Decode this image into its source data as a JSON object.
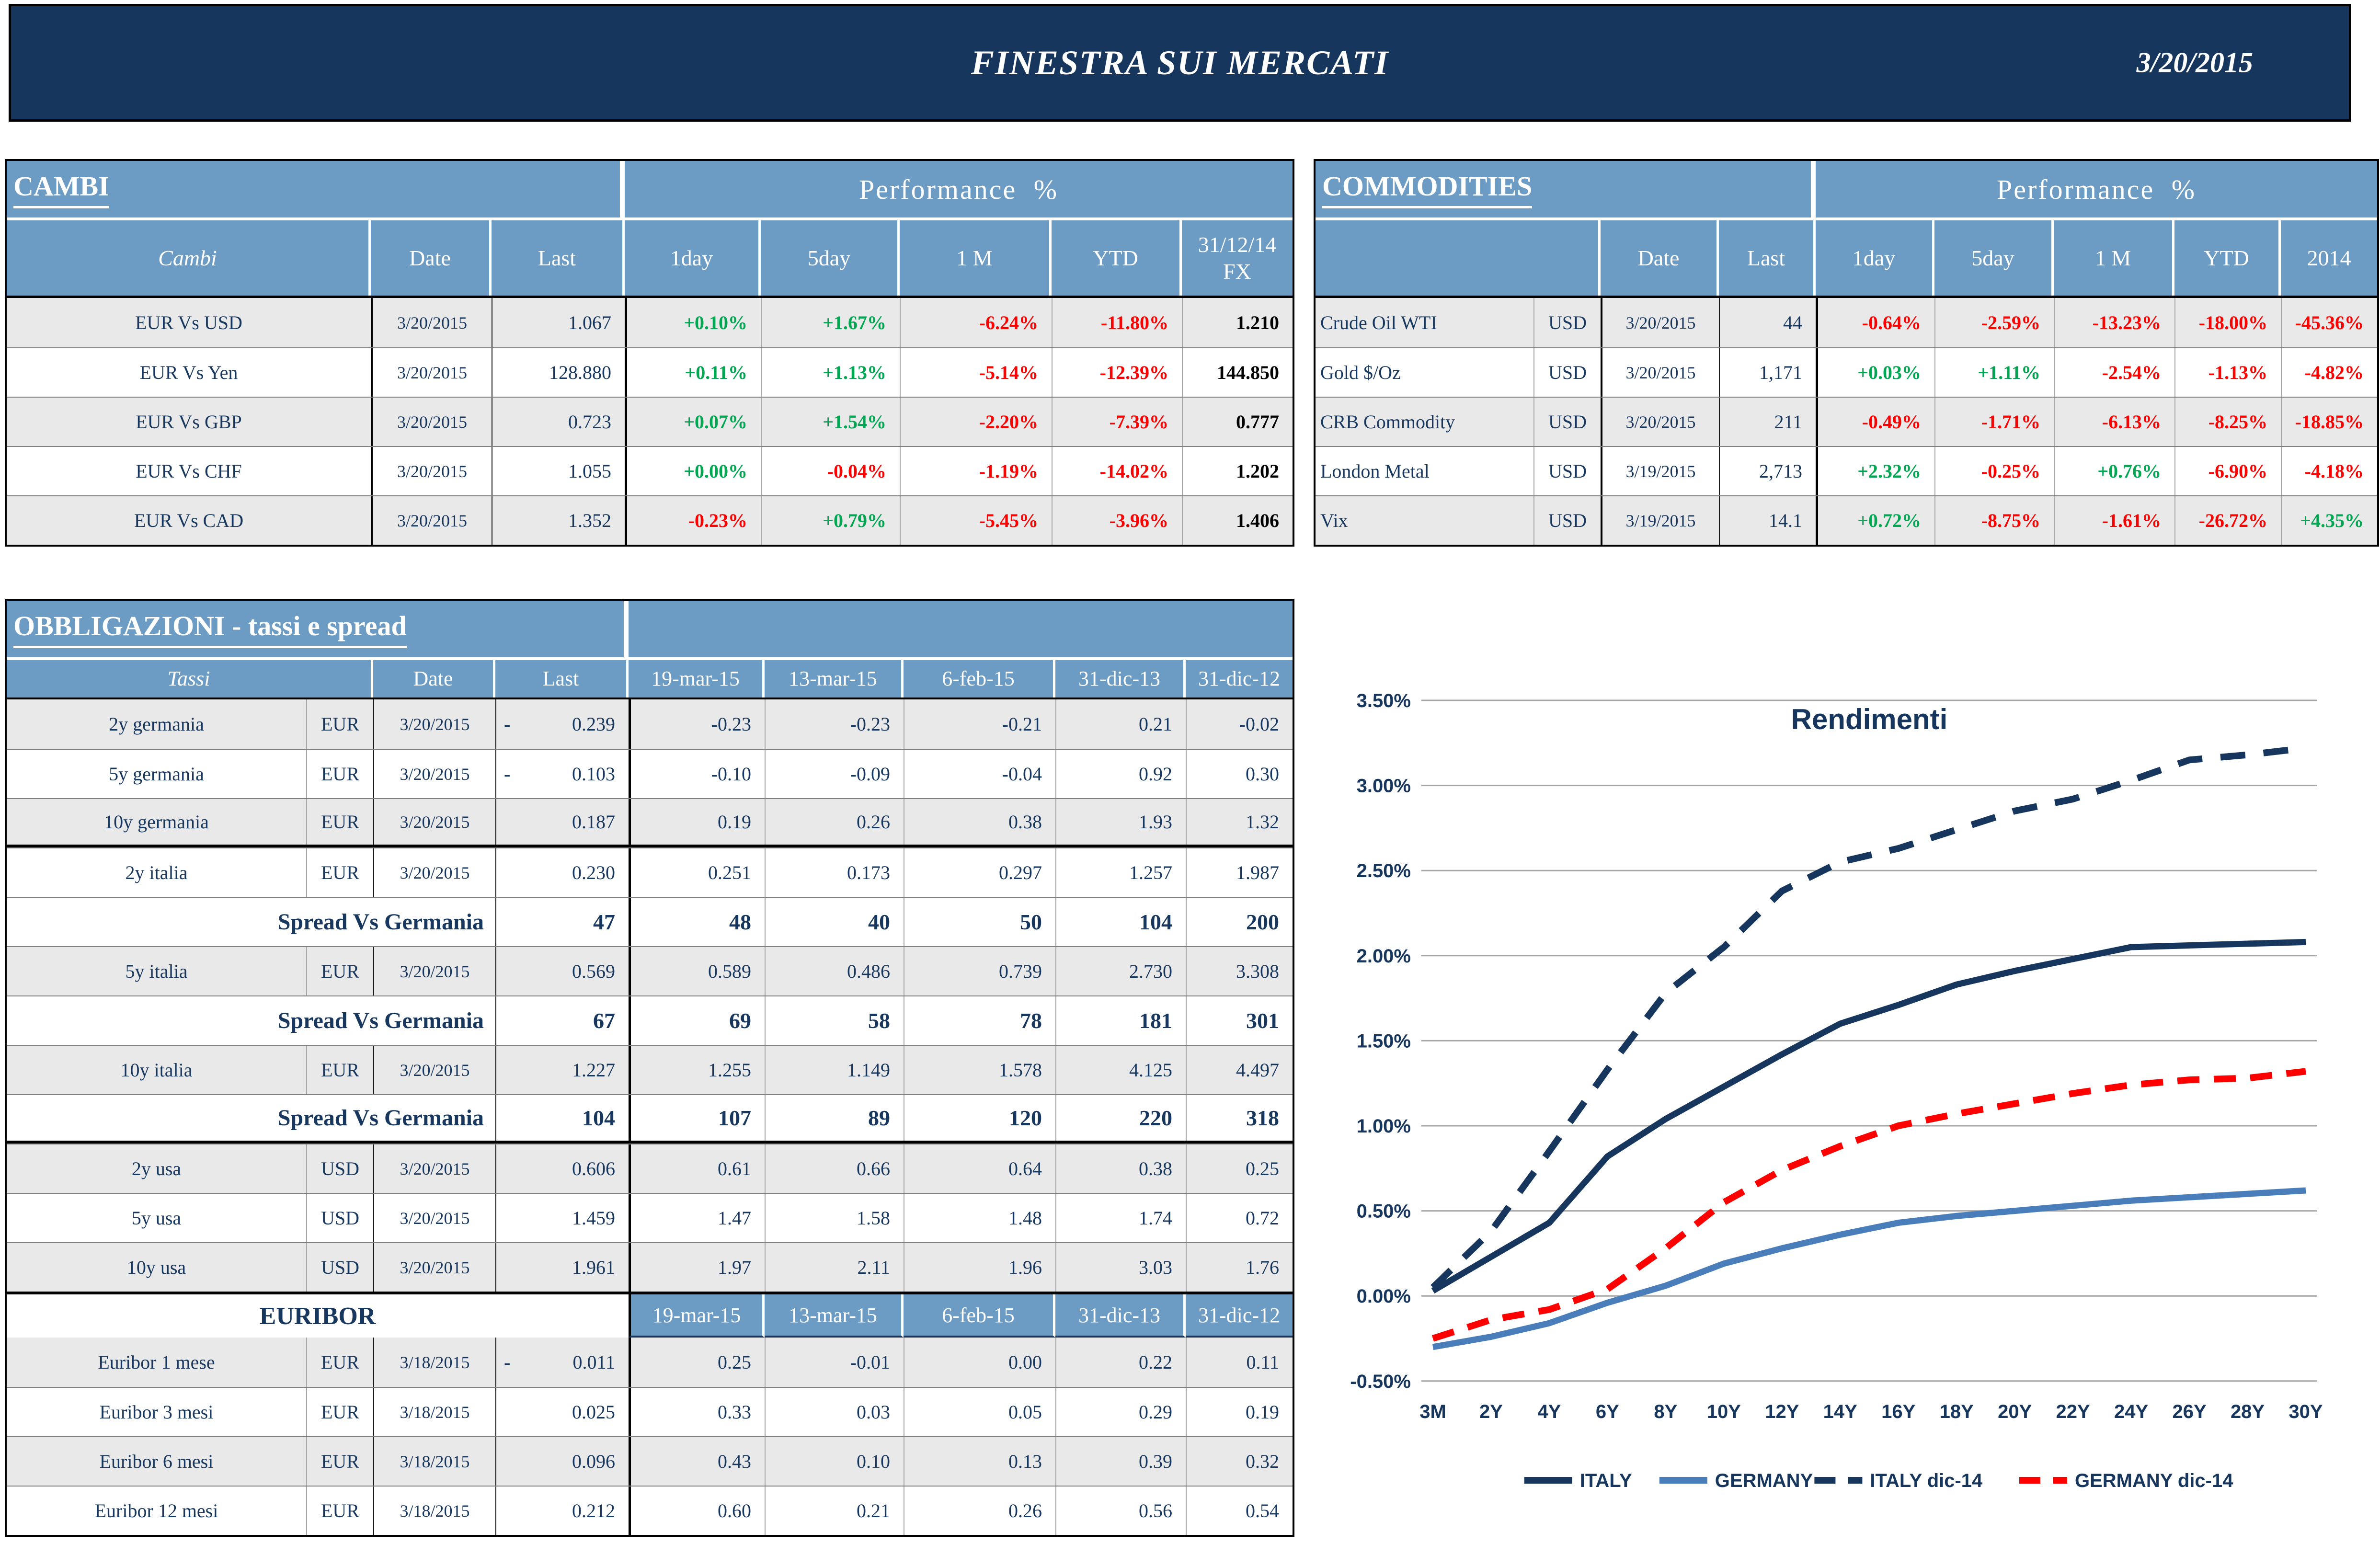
{
  "header": {
    "title": "FINESTRA SUI MERCATI",
    "date": "3/20/2015"
  },
  "colors": {
    "navy": "#17365D",
    "header_blue": "#6C9BC4",
    "row_gray": "#E9E9E9",
    "green": "#00A651",
    "red": "#FF0000",
    "grid_gray": "#A6A6A6",
    "germany_blue": "#4A7EBB"
  },
  "cambi": {
    "title": "CAMBI",
    "perf_header": "Performance %",
    "columns": [
      "Cambi",
      "Date",
      "Last",
      "1day",
      "5day",
      "1 M",
      "YTD",
      "31/12/14 FX"
    ],
    "rows": [
      {
        "name": "EUR Vs USD",
        "date": "3/20/2015",
        "last": "1.067",
        "perf": [
          "+0.10%",
          "+1.67%",
          "-6.24%",
          "-11.80%"
        ],
        "fx": "1.210"
      },
      {
        "name": "EUR Vs Yen",
        "date": "3/20/2015",
        "last": "128.880",
        "perf": [
          "+0.11%",
          "+1.13%",
          "-5.14%",
          "-12.39%"
        ],
        "fx": "144.850"
      },
      {
        "name": "EUR Vs GBP",
        "date": "3/20/2015",
        "last": "0.723",
        "perf": [
          "+0.07%",
          "+1.54%",
          "-2.20%",
          "-7.39%"
        ],
        "fx": "0.777"
      },
      {
        "name": "EUR Vs CHF",
        "date": "3/20/2015",
        "last": "1.055",
        "perf": [
          "+0.00%",
          "-0.04%",
          "-1.19%",
          "-14.02%"
        ],
        "fx": "1.202"
      },
      {
        "name": "EUR Vs CAD",
        "date": "3/20/2015",
        "last": "1.352",
        "perf": [
          "-0.23%",
          "+0.79%",
          "-5.45%",
          "-3.96%"
        ],
        "fx": "1.406"
      }
    ]
  },
  "commodities": {
    "title": "COMMODITIES",
    "perf_header": "Performance %",
    "columns": [
      "",
      "Date",
      "Last",
      "1day",
      "5day",
      "1 M",
      "YTD",
      "2014"
    ],
    "rows": [
      {
        "name": "Crude Oil WTI",
        "curr": "USD",
        "date": "3/20/2015",
        "last": "44",
        "perf": [
          "-0.64%",
          "-2.59%",
          "-13.23%",
          "-18.00%",
          "-45.36%"
        ]
      },
      {
        "name": "Gold $/Oz",
        "curr": "USD",
        "date": "3/20/2015",
        "last": "1,171",
        "perf": [
          "+0.03%",
          "+1.11%",
          "-2.54%",
          "-1.13%",
          "-4.82%"
        ]
      },
      {
        "name": "CRB Commodity",
        "curr": "USD",
        "date": "3/20/2015",
        "last": "211",
        "perf": [
          "-0.49%",
          "-1.71%",
          "-6.13%",
          "-8.25%",
          "-18.85%"
        ]
      },
      {
        "name": "London Metal",
        "curr": "USD",
        "date": "3/19/2015",
        "last": "2,713",
        "perf": [
          "+2.32%",
          "-0.25%",
          "+0.76%",
          "-6.90%",
          "-4.18%"
        ]
      },
      {
        "name": "Vix",
        "curr": "USD",
        "date": "3/19/2015",
        "last": "14.1",
        "perf": [
          "+0.72%",
          "-8.75%",
          "-1.61%",
          "-26.72%",
          "+4.35%"
        ]
      }
    ]
  },
  "obbligazioni": {
    "title": "OBBLIGAZIONI - tassi e spread",
    "header": [
      "Tassi",
      "Date",
      "Last",
      "19-mar-15",
      "13-mar-15",
      "6-feb-15",
      "31-dic-13",
      "31-dic-12"
    ],
    "rows": [
      {
        "kind": "data",
        "name": "2y germania",
        "curr": "EUR",
        "date": "3/20/2015",
        "minus": "-",
        "last": "0.239",
        "hist": [
          "-0.23",
          "-0.23",
          "-0.21",
          "0.21",
          "-0.02"
        ],
        "shade": true,
        "thick": false
      },
      {
        "kind": "data",
        "name": "5y germania",
        "curr": "EUR",
        "date": "3/20/2015",
        "minus": "-",
        "last": "0.103",
        "hist": [
          "-0.10",
          "-0.09",
          "-0.04",
          "0.92",
          "0.30"
        ],
        "shade": false,
        "thick": false
      },
      {
        "kind": "data",
        "name": "10y germania",
        "curr": "EUR",
        "date": "3/20/2015",
        "minus": "",
        "last": "0.187",
        "hist": [
          "0.19",
          "0.26",
          "0.38",
          "1.93",
          "1.32"
        ],
        "shade": true,
        "thick": true
      },
      {
        "kind": "data",
        "name": "2y italia",
        "curr": "EUR",
        "date": "3/20/2015",
        "minus": "",
        "last": "0.230",
        "hist": [
          "0.251",
          "0.173",
          "0.297",
          "1.257",
          "1.987"
        ],
        "shade": false,
        "thick": false
      },
      {
        "kind": "spread",
        "name": "Spread Vs Germania",
        "last": "47",
        "hist": [
          "48",
          "40",
          "50",
          "104",
          "200"
        ],
        "shade": false,
        "thick": false
      },
      {
        "kind": "data",
        "name": "5y italia",
        "curr": "EUR",
        "date": "3/20/2015",
        "minus": "",
        "last": "0.569",
        "hist": [
          "0.589",
          "0.486",
          "0.739",
          "2.730",
          "3.308"
        ],
        "shade": true,
        "thick": false
      },
      {
        "kind": "spread",
        "name": "Spread Vs Germania",
        "last": "67",
        "hist": [
          "69",
          "58",
          "78",
          "181",
          "301"
        ],
        "shade": false,
        "thick": false
      },
      {
        "kind": "data",
        "name": "10y italia",
        "curr": "EUR",
        "date": "3/20/2015",
        "minus": "",
        "last": "1.227",
        "hist": [
          "1.255",
          "1.149",
          "1.578",
          "4.125",
          "4.497"
        ],
        "shade": true,
        "thick": false
      },
      {
        "kind": "spread",
        "name": "Spread Vs Germania",
        "last": "104",
        "hist": [
          "107",
          "89",
          "120",
          "220",
          "318"
        ],
        "shade": false,
        "thick": true
      },
      {
        "kind": "data",
        "name": "2y usa",
        "curr": "USD",
        "date": "3/20/2015",
        "minus": "",
        "last": "0.606",
        "hist": [
          "0.61",
          "0.66",
          "0.64",
          "0.38",
          "0.25"
        ],
        "shade": true,
        "thick": false
      },
      {
        "kind": "data",
        "name": "5y usa",
        "curr": "USD",
        "date": "3/20/2015",
        "minus": "",
        "last": "1.459",
        "hist": [
          "1.47",
          "1.58",
          "1.48",
          "1.74",
          "0.72"
        ],
        "shade": false,
        "thick": false
      },
      {
        "kind": "data",
        "name": "10y usa",
        "curr": "USD",
        "date": "3/20/2015",
        "minus": "",
        "last": "1.961",
        "hist": [
          "1.97",
          "2.11",
          "1.96",
          "3.03",
          "1.76"
        ],
        "shade": true,
        "thick": false
      }
    ],
    "euribor_label": "EURIBOR",
    "euribor_header": [
      "19-mar-15",
      "13-mar-15",
      "6-feb-15",
      "31-dic-13",
      "31-dic-12"
    ],
    "euribor_rows": [
      {
        "name": "Euribor 1 mese",
        "curr": "EUR",
        "date": "3/18/2015",
        "minus": "-",
        "last": "0.011",
        "hist": [
          "0.25",
          "-0.01",
          "0.00",
          "0.22",
          "0.11"
        ],
        "shade": true
      },
      {
        "name": "Euribor 3 mesi",
        "curr": "EUR",
        "date": "3/18/2015",
        "minus": "",
        "last": "0.025",
        "hist": [
          "0.33",
          "0.03",
          "0.05",
          "0.29",
          "0.19"
        ],
        "shade": false
      },
      {
        "name": "Euribor 6 mesi",
        "curr": "EUR",
        "date": "3/18/2015",
        "minus": "",
        "last": "0.096",
        "hist": [
          "0.43",
          "0.10",
          "0.13",
          "0.39",
          "0.32"
        ],
        "shade": true
      },
      {
        "name": "Euribor 12 mesi",
        "curr": "EUR",
        "date": "3/18/2015",
        "minus": "",
        "last": "0.212",
        "hist": [
          "0.60",
          "0.21",
          "0.26",
          "0.56",
          "0.54"
        ],
        "shade": false
      }
    ]
  },
  "chart_data": {
    "type": "line",
    "title": "Rendimenti",
    "categories": [
      "3M",
      "2Y",
      "4Y",
      "6Y",
      "8Y",
      "10Y",
      "12Y",
      "14Y",
      "16Y",
      "18Y",
      "20Y",
      "22Y",
      "24Y",
      "26Y",
      "28Y",
      "30Y"
    ],
    "ylabel_ticks": [
      "3.50%",
      "3.00%",
      "2.50%",
      "2.00%",
      "1.50%",
      "1.00%",
      "0.50%",
      "0.00%",
      "-0.50%"
    ],
    "ylim": [
      -0.5,
      3.5
    ],
    "grid": true,
    "legend_position": "bottom",
    "series": [
      {
        "name": "ITALY",
        "style": "solid",
        "color": "#17365D",
        "values": [
          0.03,
          0.23,
          0.43,
          0.82,
          1.04,
          1.23,
          1.42,
          1.6,
          1.71,
          1.83,
          1.91,
          1.98,
          2.05,
          2.06,
          2.07,
          2.08
        ]
      },
      {
        "name": "GERMANY",
        "style": "solid",
        "color": "#4A7EBB",
        "values": [
          -0.3,
          -0.24,
          -0.16,
          -0.04,
          0.06,
          0.19,
          0.28,
          0.36,
          0.43,
          0.47,
          0.5,
          0.53,
          0.56,
          0.58,
          0.6,
          0.62
        ]
      },
      {
        "name": "ITALY dic-14",
        "style": "dashed",
        "color": "#17365D",
        "values": [
          0.05,
          0.38,
          0.85,
          1.33,
          1.78,
          2.05,
          2.38,
          2.55,
          2.63,
          2.74,
          2.85,
          2.92,
          3.03,
          3.15,
          3.18,
          3.22
        ]
      },
      {
        "name": "GERMANY dic-14",
        "style": "dashed",
        "color": "#FF0000",
        "values": [
          -0.25,
          -0.14,
          -0.08,
          0.04,
          0.28,
          0.55,
          0.74,
          0.88,
          1.0,
          1.07,
          1.13,
          1.19,
          1.24,
          1.27,
          1.28,
          1.32
        ]
      }
    ]
  }
}
